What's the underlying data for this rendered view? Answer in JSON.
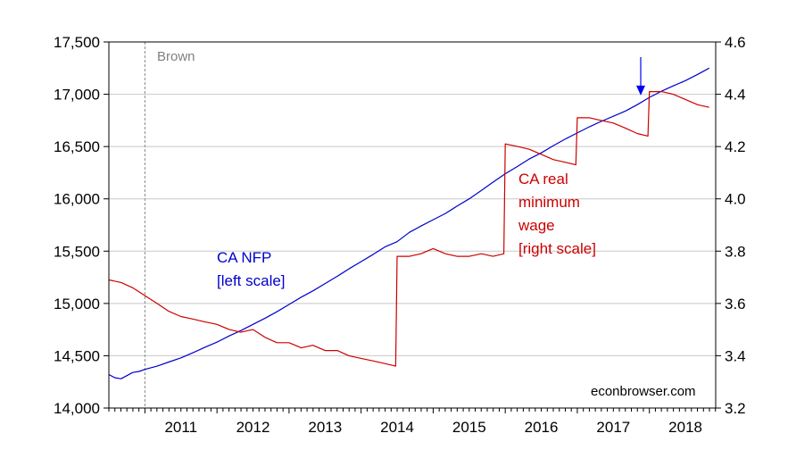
{
  "chart_data": {
    "type": "line",
    "x_range": [
      2010.5,
      2018.92
    ],
    "left_axis": {
      "ylim": [
        14000,
        17500
      ],
      "ticks": [
        14000,
        14500,
        15000,
        15500,
        16000,
        16500,
        17000,
        17500
      ],
      "tick_labels": [
        "14,000",
        "14,500",
        "15,000",
        "15,500",
        "16,000",
        "16,500",
        "17,000",
        "17,500"
      ]
    },
    "right_axis": {
      "ylim": [
        3.2,
        4.6
      ],
      "ticks": [
        3.2,
        3.4,
        3.6,
        3.8,
        4.0,
        4.2,
        4.4,
        4.6
      ],
      "tick_labels": [
        "3.2",
        "3.4",
        "3.6",
        "3.8",
        "4.0",
        "4.2",
        "4.4",
        "4.6"
      ]
    },
    "x_ticks": [
      2011,
      2012,
      2013,
      2014,
      2015,
      2016,
      2017,
      2018
    ],
    "x_tick_labels": [
      "2011",
      "2012",
      "2013",
      "2014",
      "2015",
      "2016",
      "2017",
      "2018"
    ],
    "grid": true,
    "series": [
      {
        "name": "CA NFP",
        "axis": "left",
        "color": "#0000cc",
        "x": [
          2010.5,
          2010.58,
          2010.67,
          2010.75,
          2010.83,
          2010.92,
          2011.0,
          2011.17,
          2011.33,
          2011.5,
          2011.67,
          2011.83,
          2012.0,
          2012.17,
          2012.33,
          2012.5,
          2012.67,
          2012.83,
          2013.0,
          2013.17,
          2013.33,
          2013.5,
          2013.67,
          2013.83,
          2014.0,
          2014.17,
          2014.33,
          2014.5,
          2014.67,
          2014.83,
          2015.0,
          2015.17,
          2015.33,
          2015.5,
          2015.67,
          2015.83,
          2016.0,
          2016.17,
          2016.33,
          2016.5,
          2016.67,
          2016.83,
          2017.0,
          2017.17,
          2017.33,
          2017.5,
          2017.67,
          2017.83,
          2018.0,
          2018.17,
          2018.33,
          2018.5,
          2018.67,
          2018.83
        ],
        "values": [
          14320,
          14290,
          14280,
          14310,
          14340,
          14350,
          14370,
          14400,
          14440,
          14480,
          14530,
          14580,
          14630,
          14690,
          14740,
          14800,
          14860,
          14920,
          14990,
          15060,
          15120,
          15190,
          15260,
          15330,
          15400,
          15470,
          15540,
          15590,
          15680,
          15740,
          15800,
          15860,
          15930,
          16000,
          16080,
          16160,
          16240,
          16310,
          16380,
          16440,
          16510,
          16570,
          16630,
          16690,
          16740,
          16790,
          16840,
          16900,
          16970,
          17030,
          17080,
          17130,
          17190,
          17250
        ]
      },
      {
        "name": "CA real minimum wage",
        "axis": "right",
        "color": "#cc0000",
        "x": [
          2010.5,
          2010.67,
          2010.83,
          2011.0,
          2011.17,
          2011.33,
          2011.5,
          2011.67,
          2011.83,
          2012.0,
          2012.17,
          2012.33,
          2012.5,
          2012.67,
          2012.83,
          2013.0,
          2013.17,
          2013.33,
          2013.5,
          2013.67,
          2013.83,
          2014.0,
          2014.17,
          2014.33,
          2014.48,
          2014.5,
          2014.67,
          2014.83,
          2015.0,
          2015.17,
          2015.33,
          2015.5,
          2015.67,
          2015.83,
          2015.98,
          2016.0,
          2016.17,
          2016.33,
          2016.5,
          2016.67,
          2016.83,
          2016.98,
          2017.0,
          2017.17,
          2017.33,
          2017.5,
          2017.67,
          2017.83,
          2017.98,
          2018.0,
          2018.17,
          2018.33,
          2018.5,
          2018.67,
          2018.83
        ],
        "values": [
          3.69,
          3.68,
          3.66,
          3.63,
          3.6,
          3.57,
          3.55,
          3.54,
          3.53,
          3.52,
          3.5,
          3.49,
          3.5,
          3.47,
          3.45,
          3.45,
          3.43,
          3.44,
          3.42,
          3.42,
          3.4,
          3.39,
          3.38,
          3.37,
          3.36,
          3.78,
          3.78,
          3.79,
          3.81,
          3.79,
          3.78,
          3.78,
          3.79,
          3.78,
          3.79,
          4.21,
          4.2,
          4.19,
          4.17,
          4.15,
          4.14,
          4.13,
          4.31,
          4.31,
          4.3,
          4.29,
          4.27,
          4.25,
          4.24,
          4.41,
          4.41,
          4.4,
          4.38,
          4.36,
          4.35
        ]
      }
    ],
    "reference_line": {
      "x": 2011.0,
      "label": "Brown",
      "color": "#888888"
    },
    "arrow": {
      "x": 2017.88,
      "value": 16980,
      "axis": "left",
      "color": "#0000ee"
    },
    "annotations": {
      "nfp_label": [
        "CA NFP",
        "[left scale]"
      ],
      "wage_label": [
        "CA real",
        "minimum",
        "wage",
        "[right scale]"
      ],
      "source": "econbrowser.com"
    }
  }
}
